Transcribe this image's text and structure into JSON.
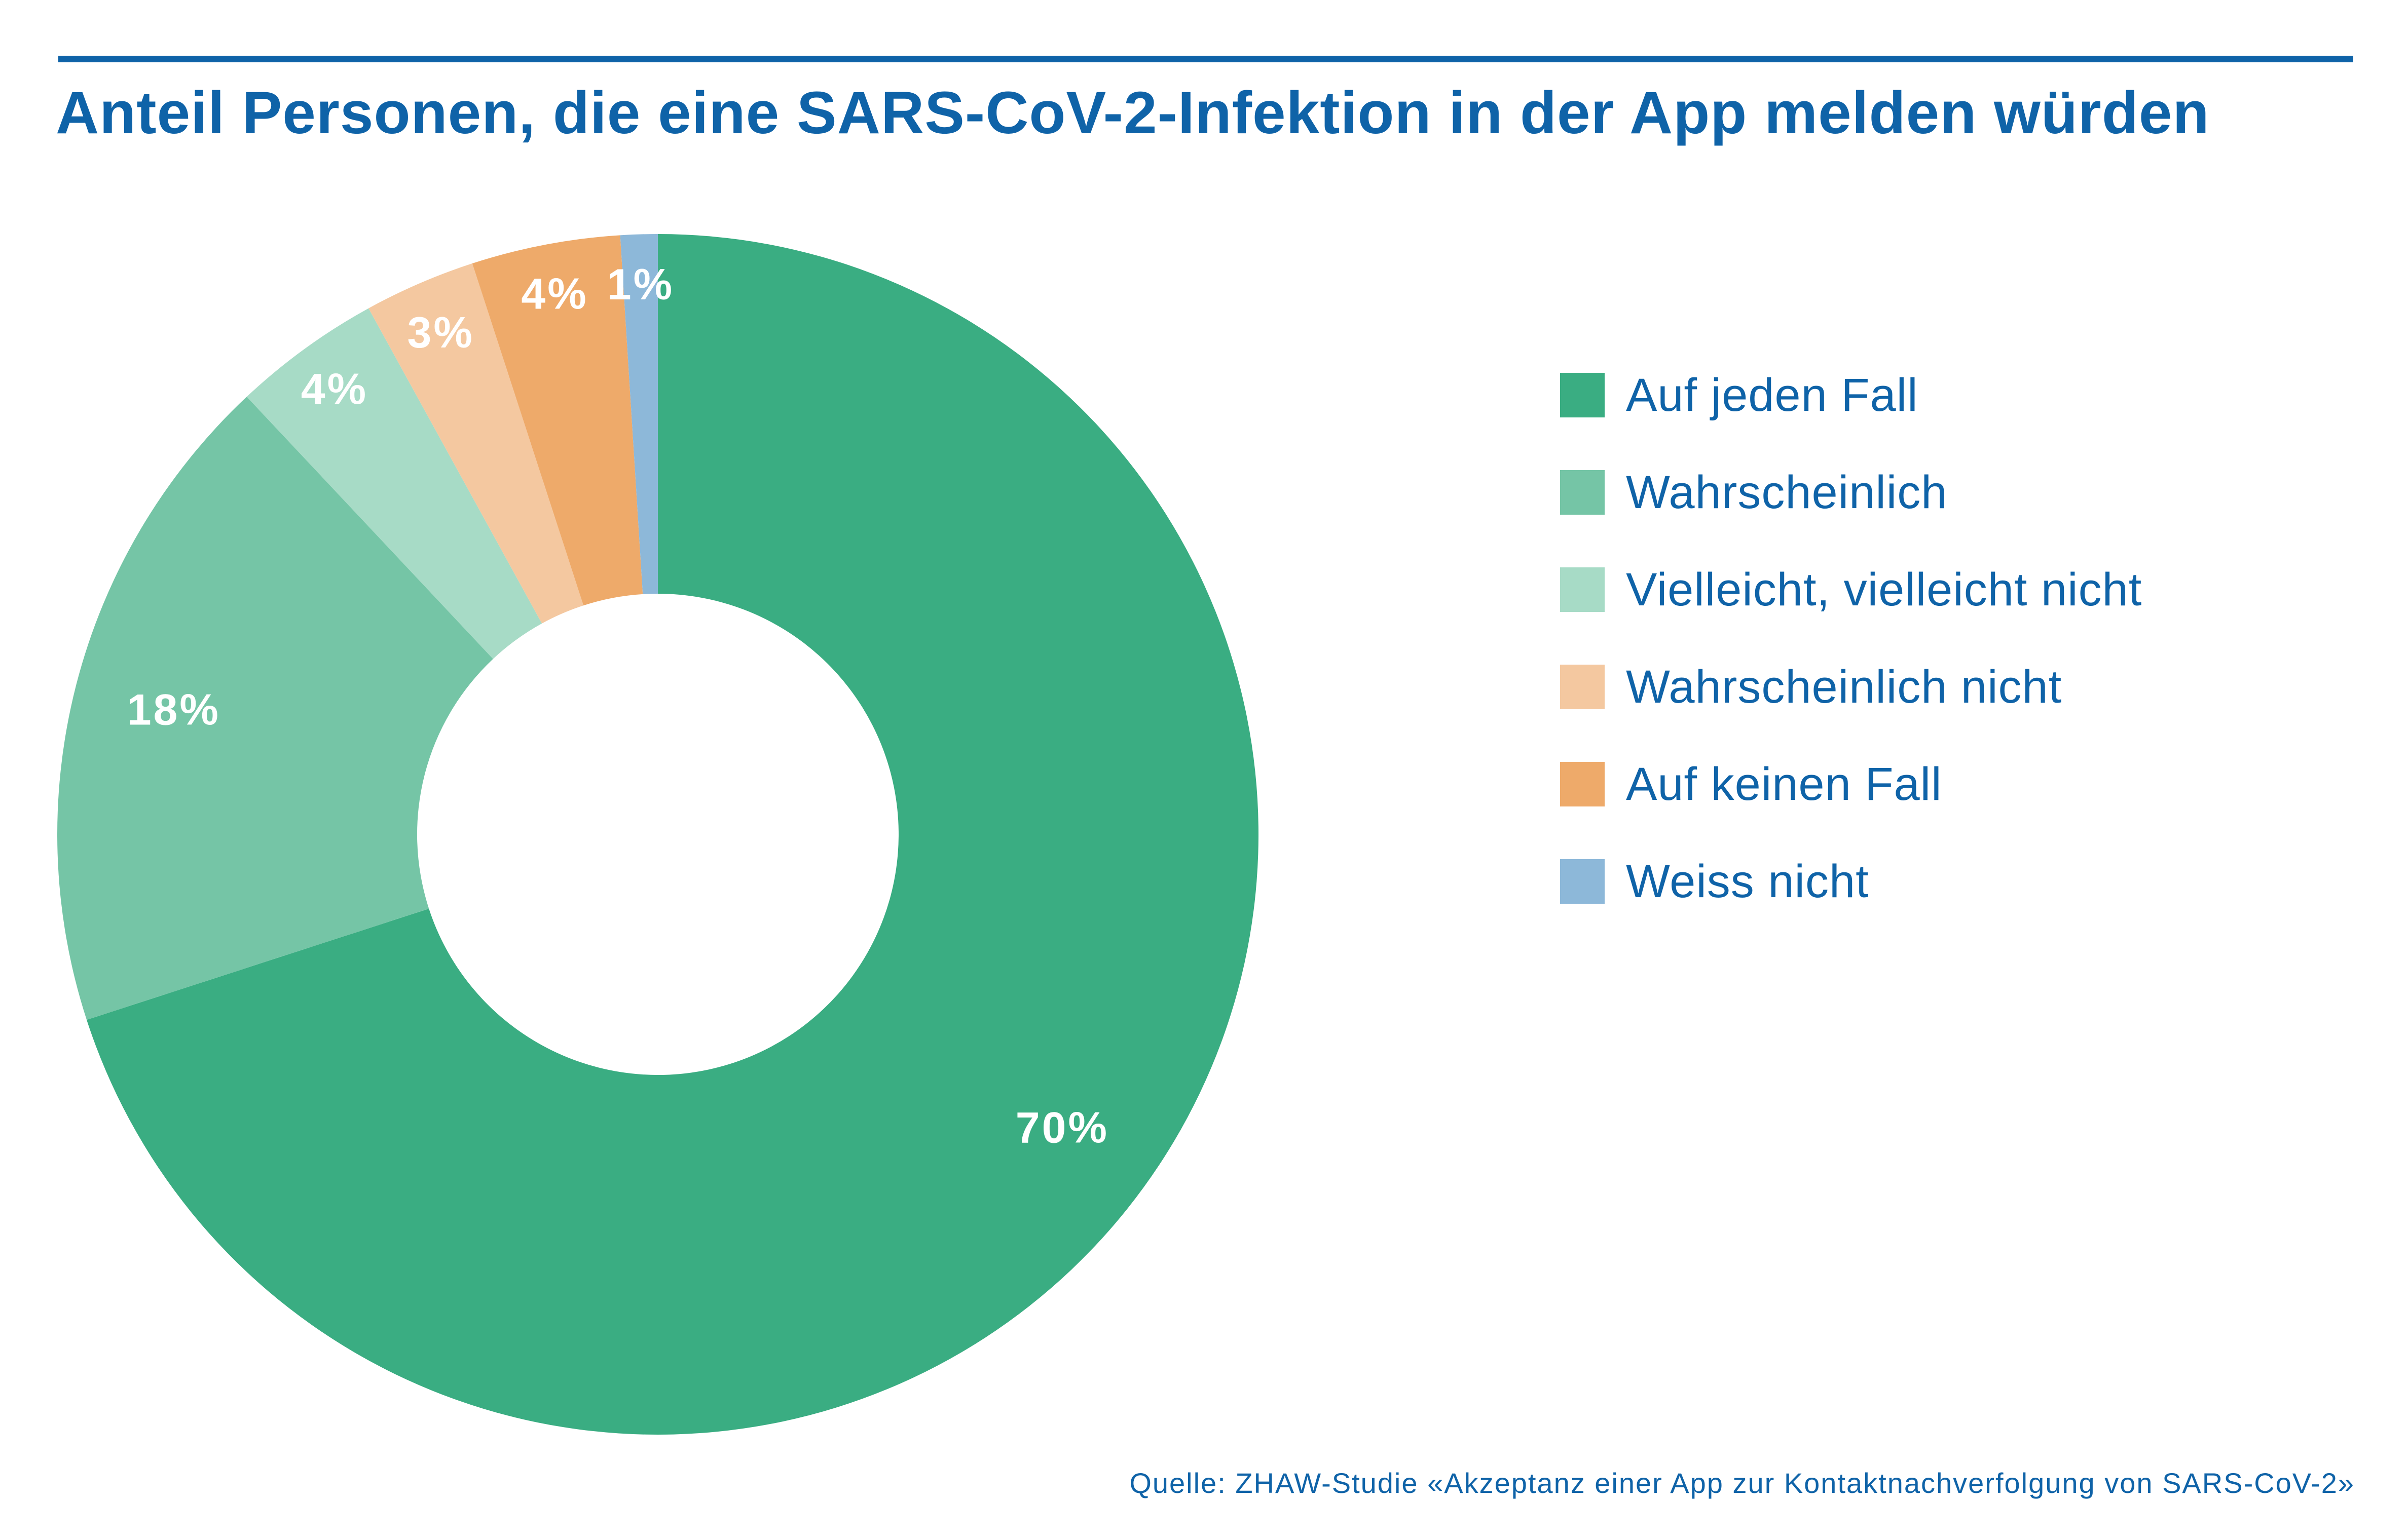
{
  "title": "Anteil Personen, die eine SARS-CoV-2-Infektion in der App melden würden",
  "source": "Quelle: ZHAW-Studie «Akzeptanz einer App zur Kontaktnachverfolgung von SARS-CoV-2»",
  "chart_data": {
    "type": "pie",
    "variant": "donut",
    "title": "Anteil Personen, die eine SARS-CoV-2-Infektion in der App melden würden",
    "legend_position": "right",
    "slices": [
      {
        "name": "Auf jeden Fall",
        "value": 70,
        "label": "70%",
        "color": "#3aad82"
      },
      {
        "name": "Wahrscheinlich",
        "value": 18,
        "label": "18%",
        "color": "#75c5a6"
      },
      {
        "name": "Vielleicht, vielleicht nicht",
        "value": 4,
        "label": "4%",
        "color": "#a7dbc6"
      },
      {
        "name": "Wahrscheinlich nicht",
        "value": 3,
        "label": "3%",
        "color": "#f4c8a0"
      },
      {
        "name": "Auf keinen Fall",
        "value": 4,
        "label": "4%",
        "color": "#eeaa6a"
      },
      {
        "name": "Weiss nicht",
        "value": 1,
        "label": "1%",
        "color": "#8db8d9"
      }
    ]
  }
}
